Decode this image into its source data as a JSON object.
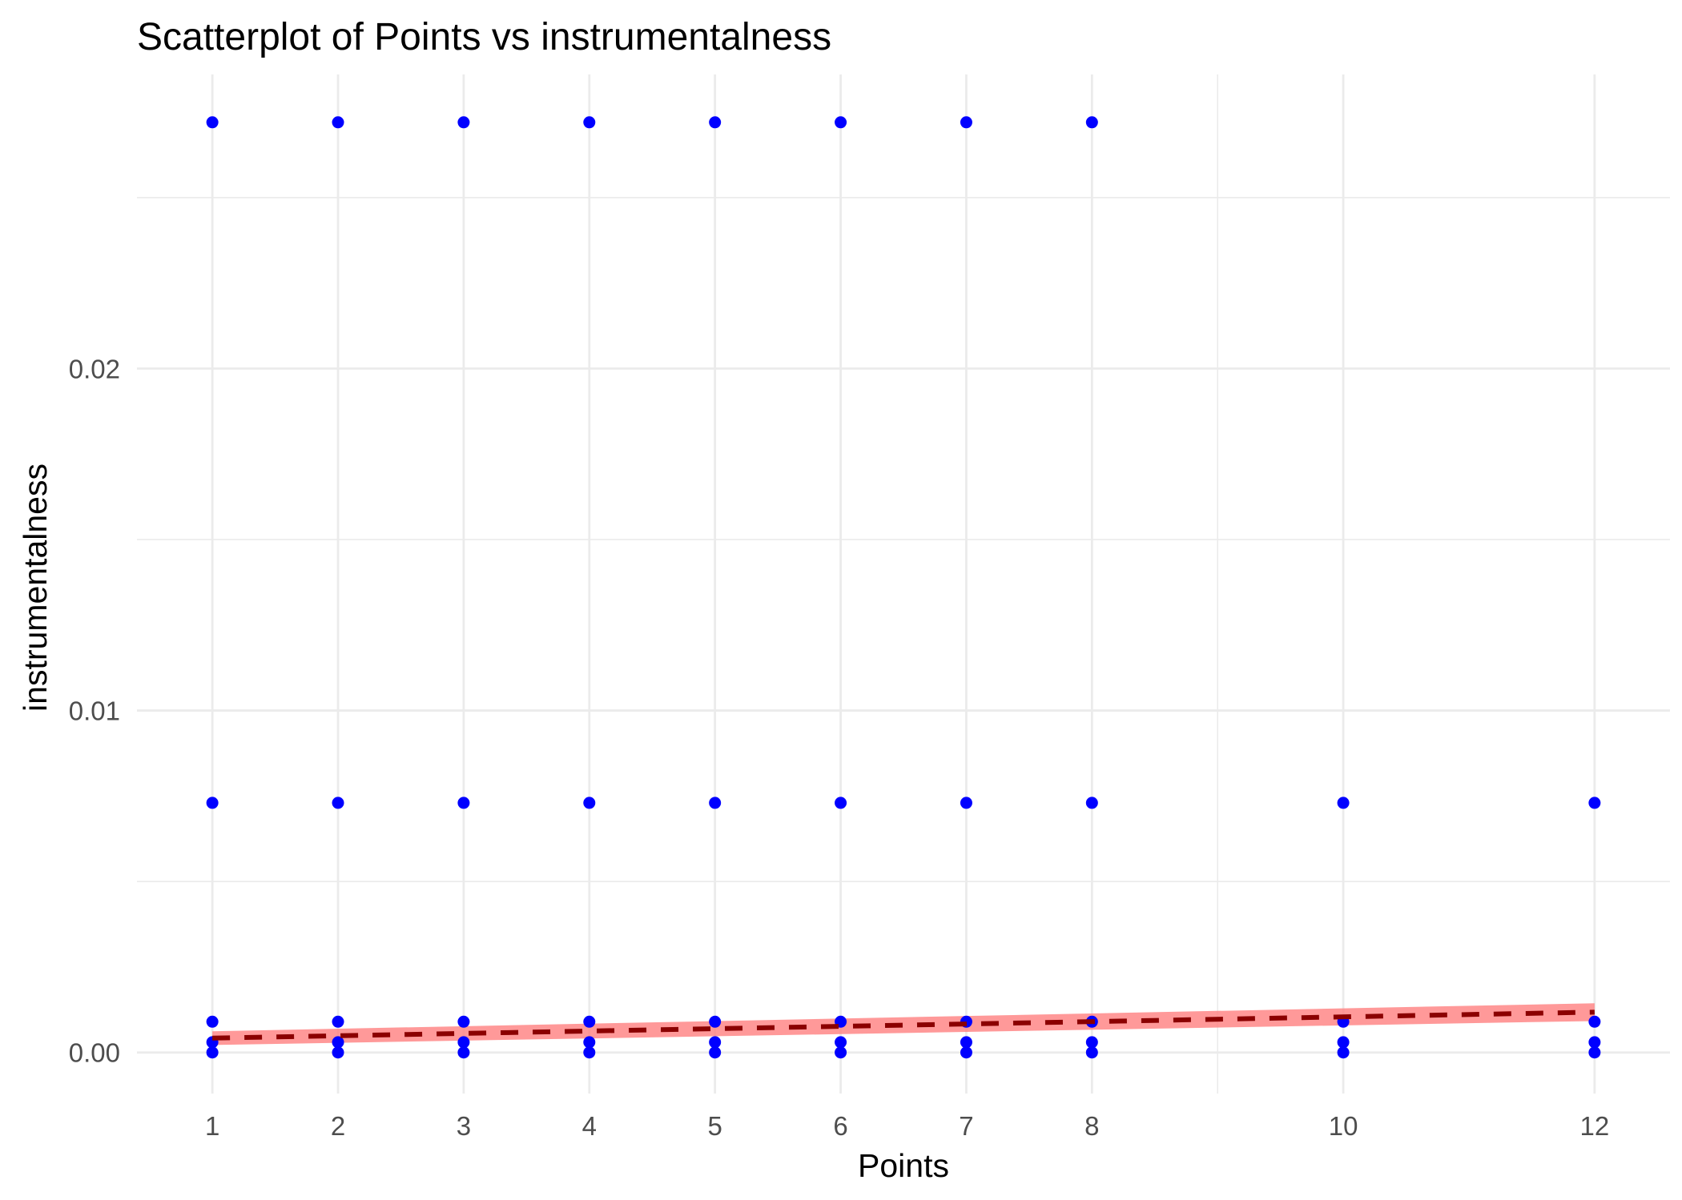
{
  "chart_data": {
    "type": "scatter",
    "title": "Scatterplot of Points vs  instrumentalness",
    "xlabel": "Points",
    "ylabel": "instrumentalness",
    "x_ticks": [
      1,
      2,
      3,
      4,
      5,
      6,
      7,
      8,
      10,
      12
    ],
    "y_ticks": [
      "0.00",
      "0.01",
      "0.02"
    ],
    "xlim": [
      0.4,
      12.6
    ],
    "ylim": [
      -0.0012,
      0.0286
    ],
    "grid": true,
    "points": [
      [
        1,
        0.0272
      ],
      [
        2,
        0.0272
      ],
      [
        3,
        0.0272
      ],
      [
        4,
        0.0272
      ],
      [
        5,
        0.0272
      ],
      [
        6,
        0.0272
      ],
      [
        7,
        0.0272
      ],
      [
        8,
        0.0272
      ],
      [
        1,
        0.0073
      ],
      [
        2,
        0.0073
      ],
      [
        3,
        0.0073
      ],
      [
        4,
        0.0073
      ],
      [
        5,
        0.0073
      ],
      [
        6,
        0.0073
      ],
      [
        7,
        0.0073
      ],
      [
        8,
        0.0073
      ],
      [
        10,
        0.0073
      ],
      [
        12,
        0.0073
      ],
      [
        1,
        0.0009
      ],
      [
        2,
        0.0009
      ],
      [
        3,
        0.0009
      ],
      [
        4,
        0.0009
      ],
      [
        5,
        0.0009
      ],
      [
        6,
        0.0009
      ],
      [
        7,
        0.0009
      ],
      [
        8,
        0.0009
      ],
      [
        10,
        0.0009
      ],
      [
        12,
        0.0009
      ],
      [
        1,
        0.0003
      ],
      [
        2,
        0.0003
      ],
      [
        3,
        0.0003
      ],
      [
        4,
        0.0003
      ],
      [
        5,
        0.0003
      ],
      [
        6,
        0.0003
      ],
      [
        7,
        0.0003
      ],
      [
        8,
        0.0003
      ],
      [
        10,
        0.0003
      ],
      [
        12,
        0.0003
      ],
      [
        1,
        0.0
      ],
      [
        2,
        0.0
      ],
      [
        3,
        0.0
      ],
      [
        4,
        0.0
      ],
      [
        5,
        0.0
      ],
      [
        6,
        0.0
      ],
      [
        7,
        0.0
      ],
      [
        8,
        0.0
      ],
      [
        10,
        0.0
      ],
      [
        12,
        0.0
      ]
    ],
    "trend_line": {
      "x": [
        1,
        12
      ],
      "y": [
        0.00042,
        0.00118
      ],
      "ci_lower": [
        0.00022,
        0.00092
      ],
      "ci_upper": [
        0.00062,
        0.00144
      ]
    },
    "colors": {
      "points": "#0000ff",
      "trend_line": "#8b0000",
      "confidence_band": "#ff8080"
    }
  }
}
